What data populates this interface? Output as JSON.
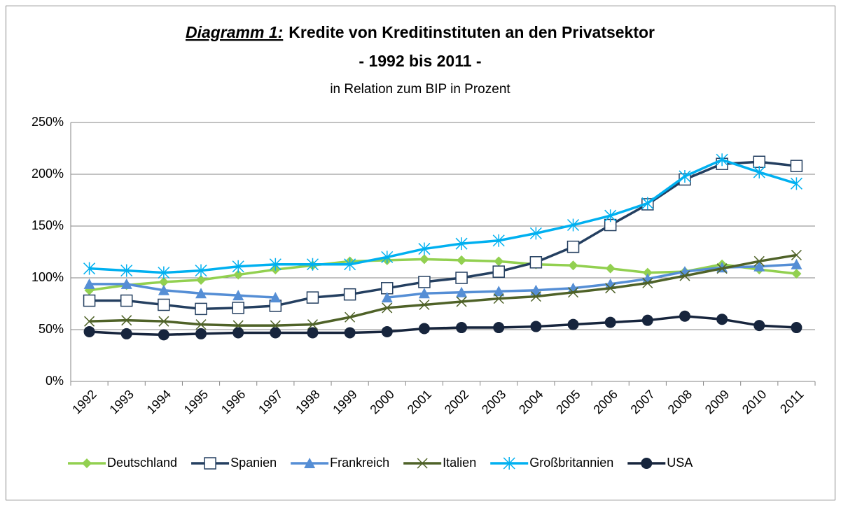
{
  "chart_data": {
    "type": "line",
    "title_prefix": "Diagramm 1:",
    "title": "Kredite von Kreditinstituten an den Privatsektor",
    "subtitle": "- 1992 bis 2011 -",
    "description": "in Relation zum BIP in Prozent",
    "categories": [
      "1992",
      "1993",
      "1994",
      "1995",
      "1996",
      "1997",
      "1998",
      "1999",
      "2000",
      "2001",
      "2002",
      "2003",
      "2004",
      "2005",
      "2006",
      "2007",
      "2008",
      "2009",
      "2010",
      "2011"
    ],
    "ylim": [
      0,
      250
    ],
    "yticks": [
      {
        "value": 0,
        "label": "0%"
      },
      {
        "value": 50,
        "label": "50%"
      },
      {
        "value": 100,
        "label": "100%"
      },
      {
        "value": 150,
        "label": "150%"
      },
      {
        "value": 200,
        "label": "200%"
      },
      {
        "value": 250,
        "label": "250%"
      }
    ],
    "grid": true,
    "legend": "bottom",
    "series": [
      {
        "name": "Deutschland",
        "color": "#92d050",
        "marker": "diamond",
        "values": [
          88,
          93,
          96,
          98,
          103,
          108,
          112,
          116,
          117,
          118,
          117,
          116,
          113,
          112,
          109,
          105,
          106,
          113,
          108,
          104
        ]
      },
      {
        "name": "Spanien",
        "color": "#243f60",
        "marker": "square",
        "values": [
          78,
          78,
          74,
          70,
          71,
          73,
          81,
          84,
          90,
          96,
          100,
          106,
          115,
          130,
          151,
          171,
          195,
          210,
          212,
          208
        ]
      },
      {
        "name": "Frankreich",
        "color": "#558ed5",
        "marker": "triangle",
        "values": [
          94,
          94,
          88,
          85,
          83,
          81,
          null,
          null,
          81,
          85,
          86,
          87,
          88,
          90,
          94,
          99,
          106,
          110,
          111,
          113
        ]
      },
      {
        "name": "Italien",
        "color": "#4f6228",
        "marker": "x",
        "values": [
          58,
          59,
          58,
          55,
          54,
          54,
          55,
          62,
          71,
          74,
          77,
          80,
          82,
          86,
          90,
          95,
          102,
          109,
          116,
          122
        ]
      },
      {
        "name": "Großbritannien",
        "color": "#00b0f0",
        "marker": "star",
        "values": [
          109,
          107,
          105,
          107,
          111,
          113,
          113,
          113,
          120,
          128,
          133,
          136,
          143,
          151,
          160,
          172,
          198,
          214,
          202,
          191
        ]
      },
      {
        "name": "USA",
        "color": "#17253d",
        "marker": "circle",
        "values": [
          48,
          46,
          45,
          46,
          47,
          47,
          47,
          47,
          48,
          51,
          52,
          52,
          53,
          55,
          57,
          59,
          63,
          60,
          54,
          52
        ]
      }
    ]
  }
}
